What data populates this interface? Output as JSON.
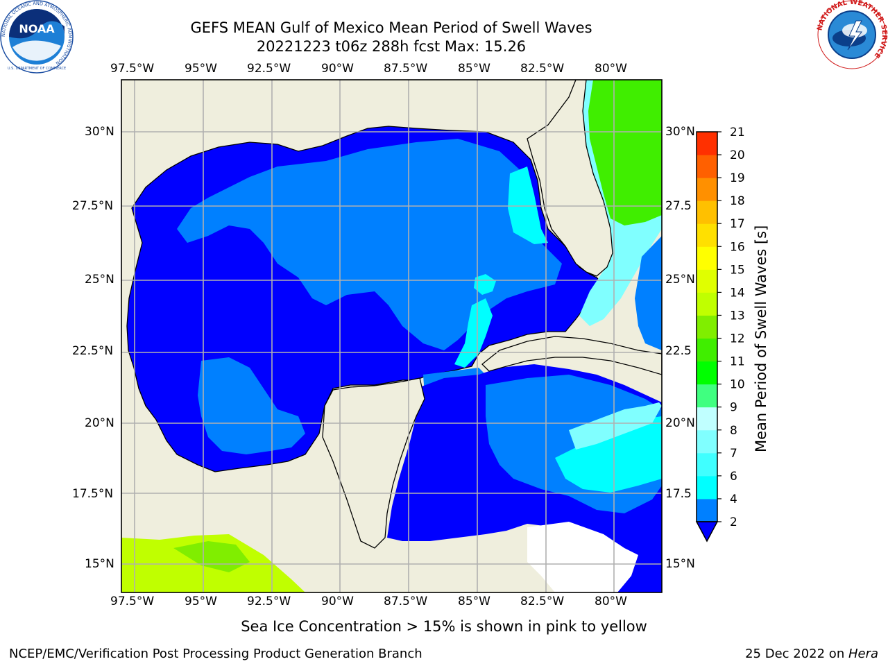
{
  "header": {
    "title_line1": "GEFS MEAN Gulf of Mexico Mean Period of Swell Waves",
    "title_line2": "20221223 t06z 288h fcst   Max: 15.26"
  },
  "logos": {
    "noaa_text": "NOAA",
    "noaa_ring": "NATIONAL OCEANIC AND ATMOSPHERIC ADMINISTRATION",
    "noaa_ring_bottom": "U.S. DEPARTMENT OF COMMERCE",
    "nws_ring": "NATIONAL WEATHER SERVICE"
  },
  "map": {
    "lon_labels": [
      "97.5°W",
      "95°W",
      "92.5°W",
      "90°W",
      "87.5°W",
      "85°W",
      "82.5°W",
      "80°W"
    ],
    "lat_labels": [
      "30°N",
      "27.5°N",
      "25°N",
      "22.5°N",
      "20°N",
      "17.5°N",
      "15°N"
    ],
    "lat_labels_right": [
      "30°N",
      "27.5",
      "25°N",
      "22.5",
      "20°N",
      "17.5",
      "15°N"
    ],
    "colors": {
      "land": "#efeedd",
      "grid": "#b0b0b0",
      "water_dark": "#0000ff",
      "water_mid": "#0080ff"
    }
  },
  "colorbar": {
    "title": "Mean Period of Swell Waves [s]",
    "ticks": [
      "2",
      "4",
      "6",
      "7",
      "8",
      "9",
      "10",
      "11",
      "12",
      "13",
      "14",
      "15",
      "16",
      "17",
      "18",
      "19",
      "20",
      "21"
    ],
    "colors": [
      "#0080ff",
      "#00ffff",
      "#40ffff",
      "#80ffff",
      "#c0ffff",
      "#40ff80",
      "#00ff00",
      "#40ee00",
      "#80ee00",
      "#c0ff00",
      "#e0ff00",
      "#ffff00",
      "#ffe000",
      "#ffc000",
      "#ff9000",
      "#ff6000",
      "#ff3000",
      "#ff0000"
    ]
  },
  "footer": {
    "ice_note": "Sea Ice Concentration > 15% is shown in pink to yellow",
    "credit": "NCEP/EMC/Verification Post Processing Product Generation Branch",
    "date_prefix": "25 Dec 2022 on ",
    "machine": "Hera"
  }
}
